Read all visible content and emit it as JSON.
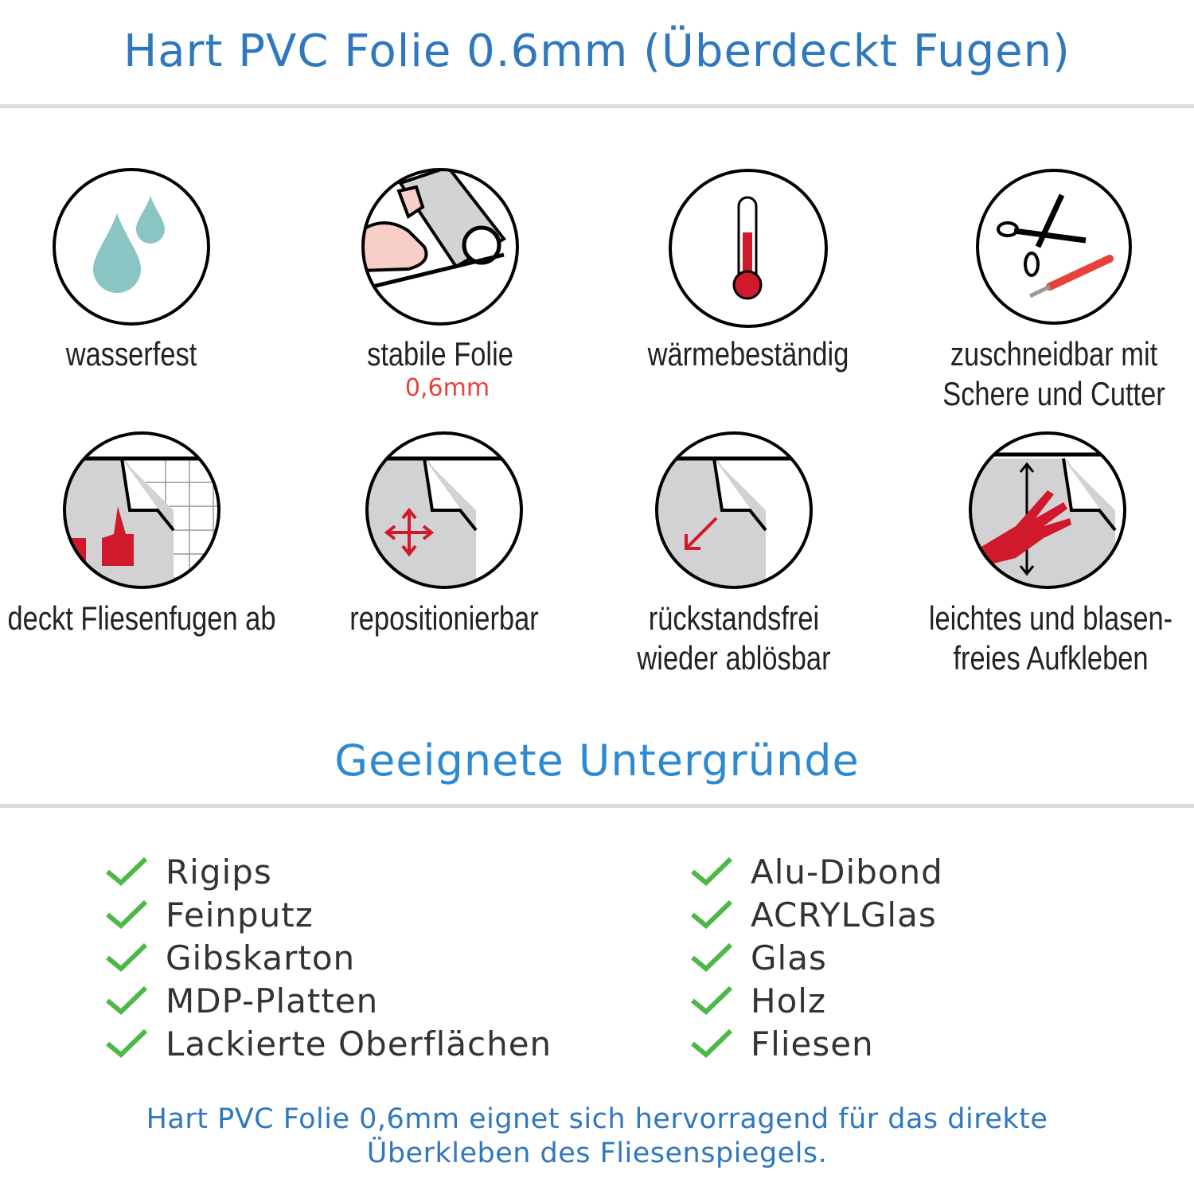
{
  "header": {
    "title": "Hart PVC Folie 0.6mm (Überdeckt Fugen)"
  },
  "features": [
    {
      "icon": "water-drops-icon",
      "label": "wasserfest"
    },
    {
      "icon": "strong-arm-roll-icon",
      "label": "stabile Folie",
      "sublabel": "0,6mm"
    },
    {
      "icon": "thermometer-icon",
      "label": "wärmebeständig"
    },
    {
      "icon": "scissors-cutter-icon",
      "label_lines": [
        "zuschneidbar mit",
        "Schere und Cutter"
      ]
    },
    {
      "icon": "thumbs-up-tile-icon",
      "label": "deckt Fliesenfugen ab"
    },
    {
      "icon": "move-arrows-icon",
      "label": "repositionierbar"
    },
    {
      "icon": "peel-arrow-icon",
      "label_lines": [
        "rückstandsfrei",
        "wieder ablösbar"
      ]
    },
    {
      "icon": "hand-smoothing-icon",
      "label_lines": [
        "leichtes und blasen-",
        "freies Aufkleben"
      ]
    }
  ],
  "surfaces": {
    "title": "Geeignete Untergründe",
    "left": [
      "Rigips",
      "Feinputz",
      "Gibskarton",
      "MDP-Platten",
      "Lackierte Oberflächen"
    ],
    "right": [
      "Alu-Dibond",
      "ACRYLGlas",
      "Glas",
      "Holz",
      "Fliesen"
    ]
  },
  "footer": {
    "lines": [
      "Hart PVC Folie 0,6mm eignet sich hervorragend für das direkte",
      "Überkleben des Fliesenspiegels."
    ]
  },
  "colors": {
    "title": "#2f78bd",
    "accent_red": "#e8413c",
    "check": "#4cb848",
    "rule": "#dcdcdc"
  }
}
